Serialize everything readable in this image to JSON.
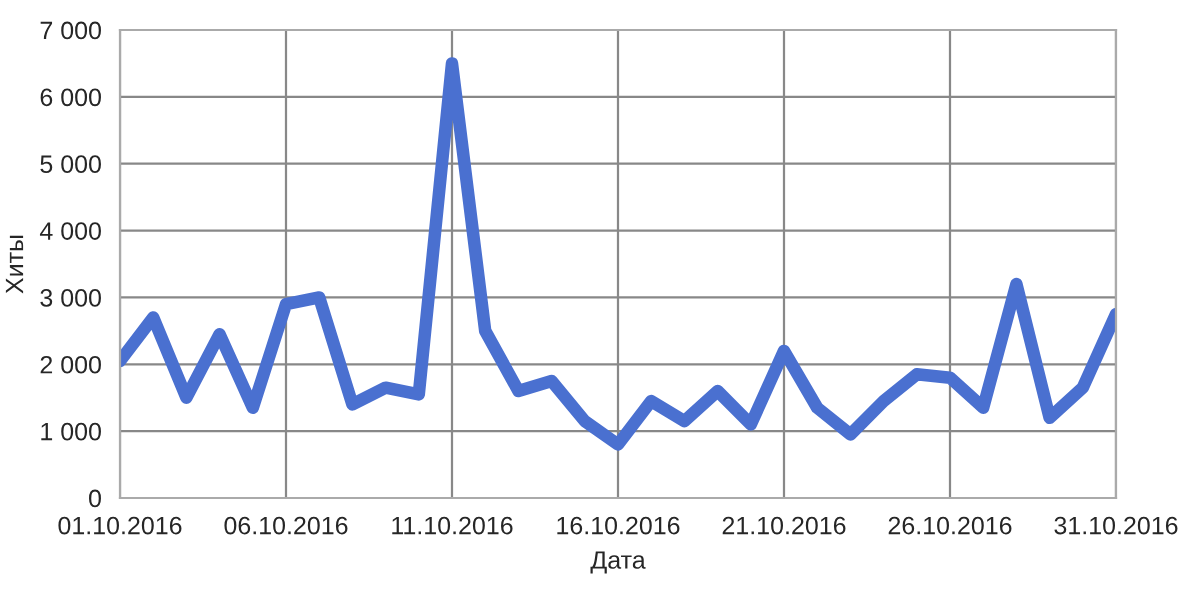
{
  "chart_data": {
    "type": "line",
    "xlabel": "Дата",
    "ylabel": "Хиты",
    "x": [
      "2016-10-01",
      "2016-10-02",
      "2016-10-03",
      "2016-10-04",
      "2016-10-05",
      "2016-10-06",
      "2016-10-07",
      "2016-10-08",
      "2016-10-09",
      "2016-10-10",
      "2016-10-11",
      "2016-10-12",
      "2016-10-13",
      "2016-10-14",
      "2016-10-15",
      "2016-10-16",
      "2016-10-17",
      "2016-10-18",
      "2016-10-19",
      "2016-10-20",
      "2016-10-21",
      "2016-10-22",
      "2016-10-23",
      "2016-10-24",
      "2016-10-25",
      "2016-10-26",
      "2016-10-27",
      "2016-10-28",
      "2016-10-29",
      "2016-10-30",
      "2016-10-31"
    ],
    "series": [
      {
        "color": "#4a70d0",
        "values": [
          2050,
          2700,
          1500,
          2450,
          1350,
          2900,
          3000,
          1400,
          1650,
          1550,
          6500,
          2500,
          1600,
          1750,
          1150,
          800,
          1450,
          1150,
          1600,
          1100,
          2200,
          1350,
          950,
          1450,
          1850,
          1800,
          1350,
          3200,
          1200,
          1650,
          2750
        ]
      }
    ],
    "xlim": [
      "2016-10-01",
      "2016-10-31"
    ],
    "xticks": [
      {
        "value": "2016-10-01",
        "label": "01.10.2016"
      },
      {
        "value": "2016-10-06",
        "label": "06.10.2016"
      },
      {
        "value": "2016-10-11",
        "label": "11.10.2016"
      },
      {
        "value": "2016-10-16",
        "label": "16.10.2016"
      },
      {
        "value": "2016-10-21",
        "label": "21.10.2016"
      },
      {
        "value": "2016-10-26",
        "label": "26.10.2016"
      },
      {
        "value": "2016-10-31",
        "label": "31.10.2016"
      }
    ],
    "ylim": [
      0,
      7000
    ],
    "yticks": [
      0,
      {
        "value": 1000,
        "label": "1 000"
      },
      {
        "value": 2000,
        "label": "2 000"
      },
      {
        "value": 3000,
        "label": "3 000"
      },
      {
        "value": 4000,
        "label": "4 000"
      },
      {
        "value": 5000,
        "label": "5 000"
      },
      {
        "value": 6000,
        "label": "6 000"
      },
      {
        "value": 7000,
        "label": "7 000"
      }
    ],
    "grid": true,
    "legend": false,
    "marker": "none",
    "line_style": "solid"
  }
}
